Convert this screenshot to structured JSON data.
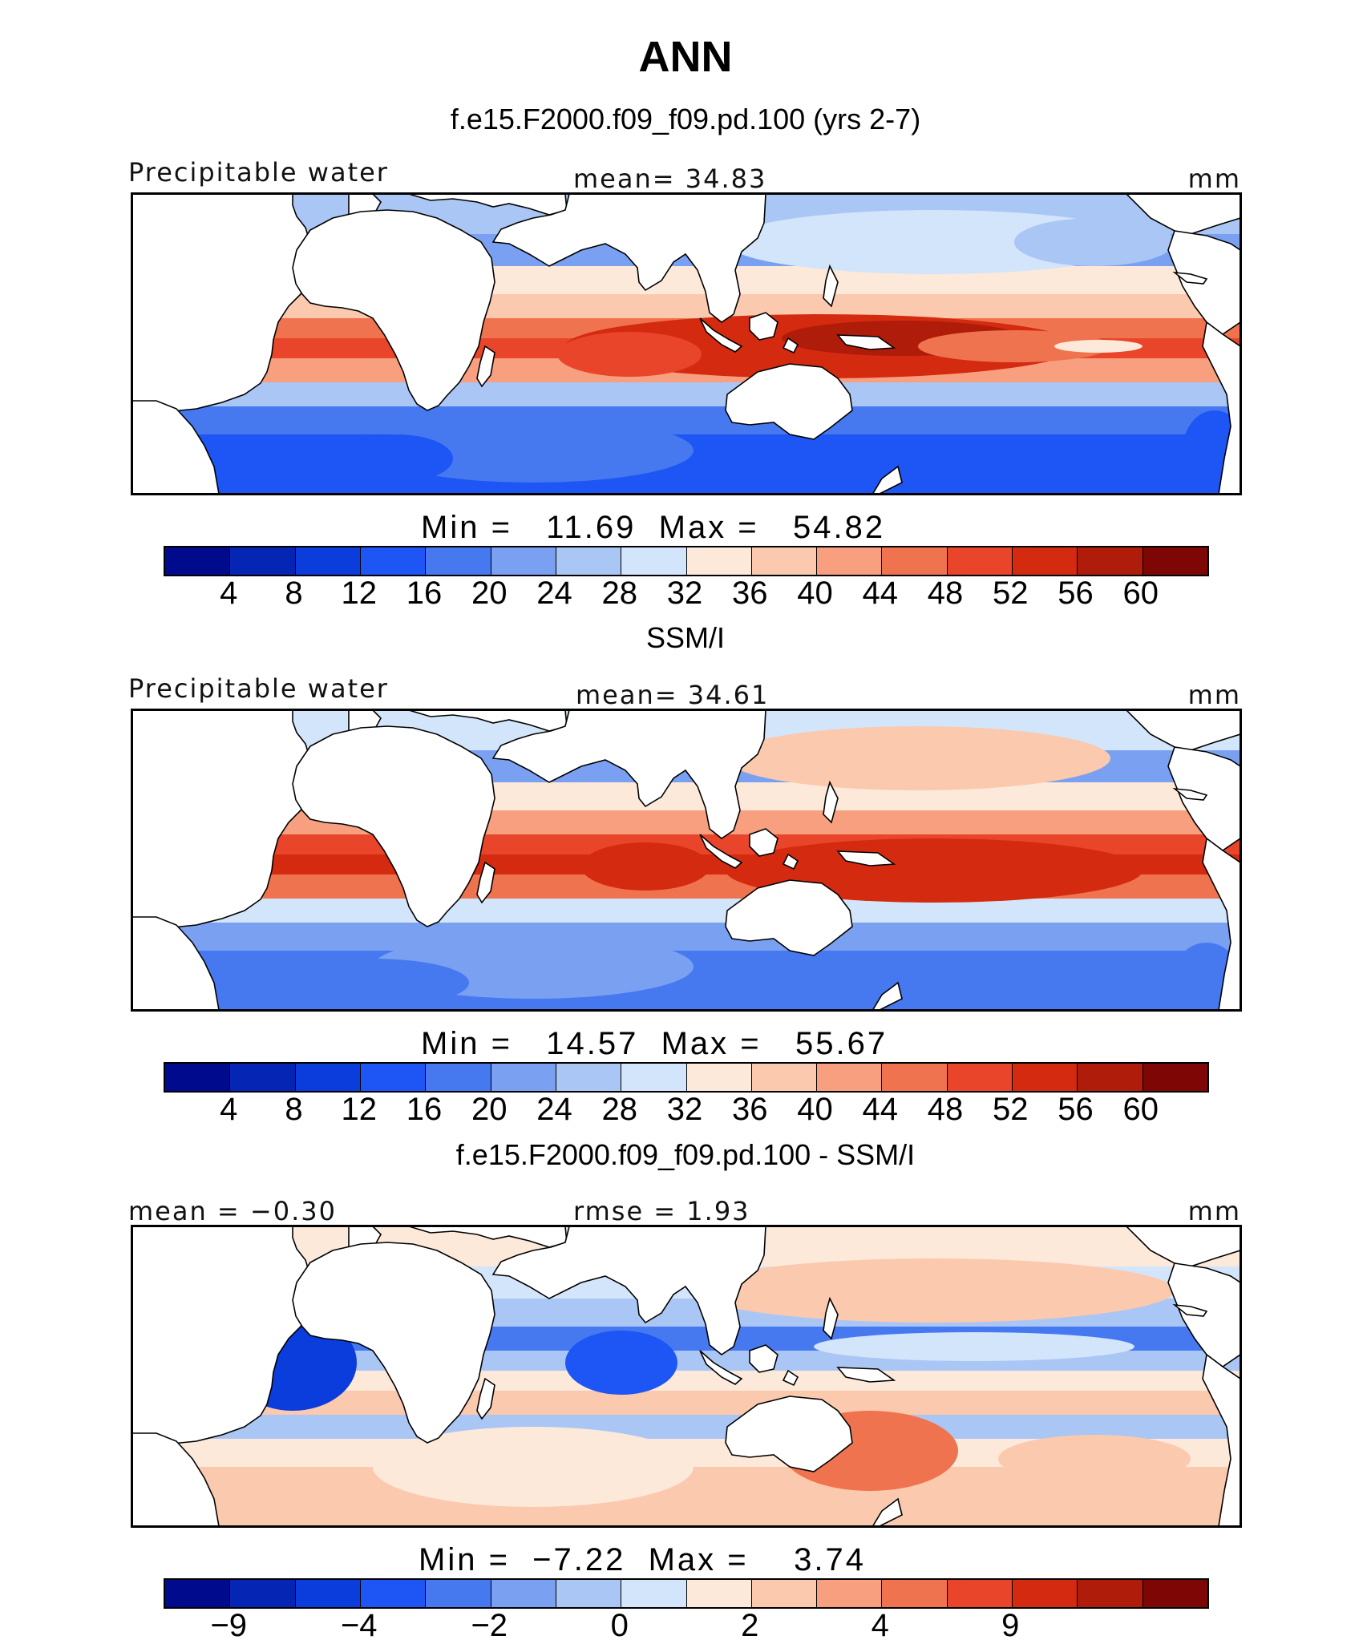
{
  "title": "ANN",
  "colors": {
    "scale": [
      "#000a8c",
      "#0526b5",
      "#0a3ddc",
      "#1e55f5",
      "#4678f0",
      "#7aa0f2",
      "#aac6f5",
      "#d3e5fa",
      "#fde9da",
      "#fbc9ae",
      "#f79f7e",
      "#f0734f",
      "#e8452a",
      "#d42a10",
      "#b01c0a",
      "#7e0706"
    ],
    "land": "#ffffff",
    "coast": "#000000"
  },
  "panels": [
    {
      "title": "f.e15.F2000.f09_f09.pd.100 (yrs 2-7)",
      "left_label": "Precipitable water",
      "center_label": "mean=   34.83",
      "units": "mm",
      "minmax": "Min =   11.69  Max =   54.82",
      "colorbar_labels": [
        "4",
        "8",
        "12",
        "16",
        "20",
        "24",
        "28",
        "32",
        "36",
        "40",
        "44",
        "48",
        "52",
        "56",
        "60"
      ]
    },
    {
      "title": "SSM/I",
      "left_label": "Precipitable water",
      "center_label": "mean=   34.61",
      "units": "mm",
      "minmax": "Min =   14.57  Max =   55.67",
      "colorbar_labels": [
        "4",
        "8",
        "12",
        "16",
        "20",
        "24",
        "28",
        "32",
        "36",
        "40",
        "44",
        "48",
        "52",
        "56",
        "60"
      ]
    },
    {
      "title": "f.e15.F2000.f09_f09.pd.100 - SSM/I",
      "left_label": "mean =  −0.30",
      "center_label": "rmse =    1.93",
      "units": "mm",
      "minmax": "Min =  −7.22  Max =    3.74",
      "colorbar_labels": [
        "−9",
        "",
        "−4",
        "",
        "−2",
        "",
        "0",
        "",
        "2",
        "",
        "4",
        "",
        "9",
        "",
        ""
      ]
    }
  ]
}
